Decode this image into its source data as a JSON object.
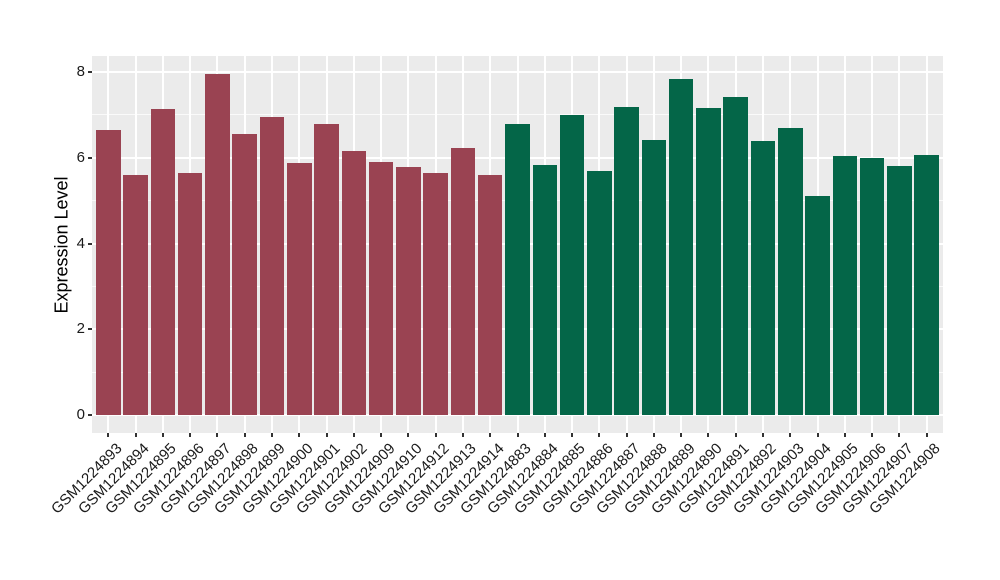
{
  "chart_data": {
    "type": "bar",
    "title": "",
    "xlabel": "",
    "ylabel": "Expression Level",
    "ylim": [
      0,
      8.36
    ],
    "yticks_major": [
      0,
      2,
      4,
      6,
      8
    ],
    "yticks_minor": [
      1,
      3,
      5,
      7
    ],
    "grid": "white major+minor horizontal lines and white vertical category lines on gray panel",
    "legend": "none",
    "categories": [
      "GSM1224893",
      "GSM1224894",
      "GSM1224895",
      "GSM1224896",
      "GSM1224897",
      "GSM1224898",
      "GSM1224899",
      "GSM1224900",
      "GSM1224901",
      "GSM1224902",
      "GSM1224909",
      "GSM1224910",
      "GSM1224912",
      "GSM1224913",
      "GSM1224914",
      "GSM1224883",
      "GSM1224884",
      "GSM1224885",
      "GSM1224886",
      "GSM1224887",
      "GSM1224888",
      "GSM1224889",
      "GSM1224890",
      "GSM1224891",
      "GSM1224892",
      "GSM1224903",
      "GSM1224904",
      "GSM1224905",
      "GSM1224906",
      "GSM1224907",
      "GSM1224908"
    ],
    "values": [
      6.64,
      5.6,
      7.14,
      5.65,
      7.96,
      6.55,
      6.96,
      5.88,
      6.78,
      6.16,
      5.89,
      5.79,
      5.65,
      6.23,
      5.6,
      6.79,
      5.82,
      7.0,
      5.68,
      7.18,
      6.41,
      7.83,
      7.15,
      7.42,
      6.39,
      6.69,
      5.1,
      6.03,
      5.99,
      5.81,
      6.06
    ],
    "bar_color_keys": [
      "maroon",
      "maroon",
      "maroon",
      "maroon",
      "maroon",
      "maroon",
      "maroon",
      "maroon",
      "maroon",
      "maroon",
      "maroon",
      "maroon",
      "maroon",
      "maroon",
      "maroon",
      "green",
      "green",
      "green",
      "green",
      "green",
      "green",
      "green",
      "green",
      "green",
      "green",
      "green",
      "green",
      "green",
      "green",
      "green",
      "green"
    ],
    "colors": {
      "maroon": "#9A4352",
      "green": "#046648",
      "panel_bg": "#EBEBEB",
      "gridline": "#FFFFFF",
      "tick_mark": "#333333",
      "tick_label": "#1A1A1A",
      "axis_title": "#000000"
    }
  }
}
